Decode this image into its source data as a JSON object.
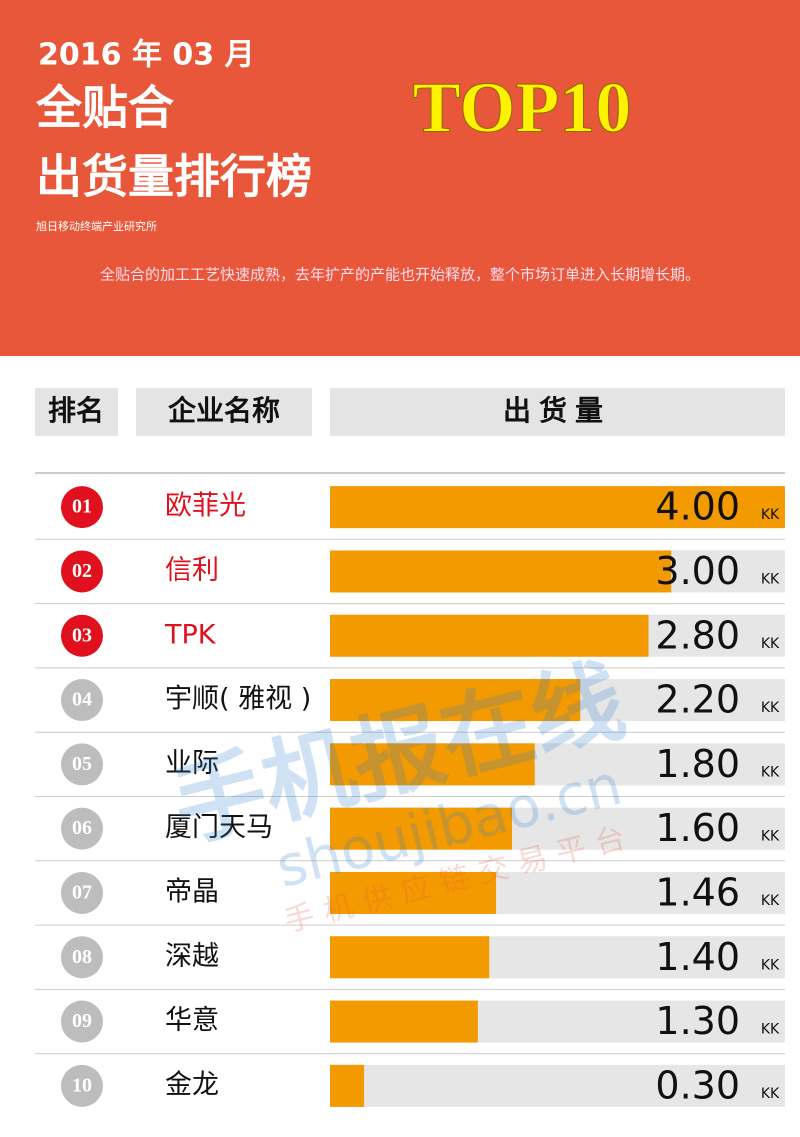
{
  "header": {
    "date": "2016 年 03 月",
    "title_line1": "全贴合",
    "title_line2": "出货量排行榜",
    "badge": "TOP10",
    "source": "旭日移动终端产业研究所",
    "description": "全贴合的加工工艺快速成熟，去年扩产的产能也开始释放，整个市场订单进入长期增长期。"
  },
  "watermark": {
    "logo": "手机报在线",
    "url": "shoujibao.cn",
    "slogan": "手机供应链交易平台"
  },
  "chart_data": {
    "type": "bar",
    "orientation": "horizontal",
    "columns": [
      "排名",
      "企业名称",
      "出货量"
    ],
    "ranks": [
      "01",
      "02",
      "03",
      "04",
      "05",
      "06",
      "07",
      "08",
      "09",
      "10"
    ],
    "categories": [
      "欧菲光",
      "信利",
      "TPK",
      "宇顺( 雅视 )",
      "业际",
      "厦门天马",
      "帝晶",
      "深越",
      "华意",
      "金龙"
    ],
    "values": [
      4.0,
      3.0,
      2.8,
      2.2,
      1.8,
      1.6,
      1.46,
      1.4,
      1.3,
      0.3
    ],
    "value_labels": [
      "4.00",
      "3.00",
      "2.80",
      "2.20",
      "1.80",
      "1.60",
      "1.46",
      "1.40",
      "1.30",
      "0.30"
    ],
    "unit": "KK",
    "xlim": [
      0,
      4
    ],
    "color": "#f39a00",
    "track_color": "#e6e6e6",
    "rank_colors": [
      "#e0101e",
      "#e0101e",
      "#e0101e",
      "#bdbdbd",
      "#bdbdbd",
      "#bdbdbd",
      "#bdbdbd",
      "#bdbdbd",
      "#bdbdbd",
      "#bdbdbd"
    ],
    "name_colors": [
      "#e0101e",
      "#e0101e",
      "#e0101e",
      "#111111",
      "#111111",
      "#111111",
      "#111111",
      "#111111",
      "#111111",
      "#111111"
    ]
  }
}
